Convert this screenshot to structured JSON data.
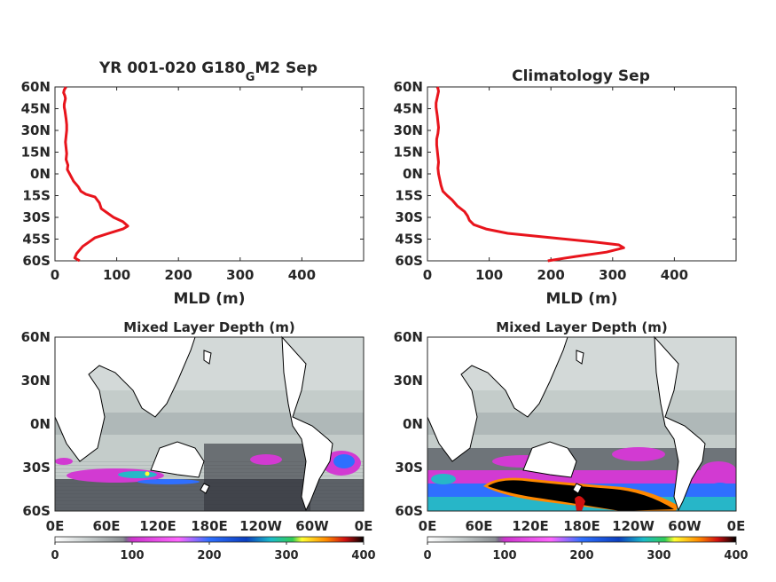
{
  "chart_data": [
    {
      "type": "line",
      "title_main": "YR 001-020 G180",
      "title_sub": "G",
      "title_tail": "M2 Sep",
      "xlabel": "MLD (m)",
      "ylabel": "",
      "xlim": [
        0,
        500
      ],
      "ylim": [
        -60,
        60
      ],
      "x_ticks": [
        "0",
        "100",
        "200",
        "300",
        "400"
      ],
      "y_ticks": [
        "60N",
        "45N",
        "30N",
        "15N",
        "0N",
        "15S",
        "30S",
        "45S",
        "60S"
      ],
      "color": "#e8141c",
      "series": [
        {
          "x": [
            40,
            32,
            35,
            45,
            55,
            65,
            80,
            95,
            110,
            118,
            110,
            95,
            85,
            75,
            72,
            65,
            50,
            42,
            38,
            30,
            25,
            20,
            21,
            18,
            19,
            18,
            17,
            18,
            19,
            19,
            18,
            17,
            16,
            15,
            15,
            16,
            17,
            16,
            14,
            15,
            18
          ],
          "y": [
            -60,
            -58,
            -55,
            -50,
            -47,
            -44,
            -42,
            -40,
            -38,
            -36,
            -33,
            -30,
            -27,
            -24,
            -20,
            -16,
            -14,
            -12,
            -9,
            -5,
            -1,
            3,
            6,
            10,
            14,
            18,
            22,
            26,
            30,
            34,
            38,
            41,
            44,
            46,
            48,
            50,
            52,
            54,
            56,
            58,
            60
          ]
        }
      ]
    },
    {
      "type": "line",
      "title": "Climatology Sep",
      "xlabel": "MLD (m)",
      "ylabel": "",
      "xlim": [
        0,
        500
      ],
      "ylim": [
        -60,
        60
      ],
      "x_ticks": [
        "0",
        "100",
        "200",
        "300",
        "400"
      ],
      "y_ticks": [
        "60N",
        "45N",
        "30N",
        "15N",
        "0N",
        "15S",
        "30S",
        "45S",
        "60S"
      ],
      "color": "#e8141c",
      "series": [
        {
          "x": [
            195,
            240,
            290,
            318,
            310,
            270,
            200,
            130,
            95,
            75,
            68,
            65,
            60,
            48,
            40,
            32,
            25,
            22,
            20,
            18,
            17,
            18,
            17,
            16,
            15,
            15,
            17,
            18,
            17,
            16,
            15,
            14,
            14,
            15,
            16,
            17,
            18,
            17,
            16
          ],
          "y": [
            -60,
            -57,
            -54,
            -51,
            -49,
            -47,
            -44,
            -41,
            -38,
            -35,
            -32,
            -29,
            -26,
            -22,
            -18,
            -15,
            -12,
            -8,
            -4,
            0,
            4,
            8,
            12,
            16,
            20,
            24,
            28,
            32,
            36,
            40,
            43,
            46,
            49,
            51,
            53,
            55,
            57,
            59,
            60
          ]
        }
      ]
    },
    {
      "type": "heatmap",
      "title": "Mixed Layer Depth (m)",
      "x_ticks": [
        "0E",
        "60E",
        "120E",
        "180E",
        "120W",
        "60W",
        "0E"
      ],
      "y_ticks": [
        "60N",
        "30N",
        "0N",
        "30S",
        "60S"
      ],
      "colorbar_ticks": [
        "0",
        "100",
        "200",
        "300",
        "400"
      ],
      "colorbar_range": [
        0,
        400
      ]
    },
    {
      "type": "heatmap",
      "title": "Mixed Layer Depth (m)",
      "x_ticks": [
        "0E",
        "60E",
        "120E",
        "180E",
        "120W",
        "60W",
        "0E"
      ],
      "y_ticks": [
        "60N",
        "30N",
        "0N",
        "30S",
        "60S"
      ],
      "colorbar_ticks": [
        "0",
        "100",
        "200",
        "300",
        "400"
      ],
      "colorbar_range": [
        0,
        400
      ]
    }
  ],
  "colorbar_colors": [
    {
      "stop": 0.0,
      "color": "#ffffff"
    },
    {
      "stop": 0.1,
      "color": "#c9cfcf"
    },
    {
      "stop": 0.22,
      "color": "#8a8f93"
    },
    {
      "stop": 0.23,
      "color": "#7a6a8a"
    },
    {
      "stop": 0.25,
      "color": "#cc33cc"
    },
    {
      "stop": 0.4,
      "color": "#ff66ff"
    },
    {
      "stop": 0.5,
      "color": "#2f6fff"
    },
    {
      "stop": 0.62,
      "color": "#0a3fbf"
    },
    {
      "stop": 0.7,
      "color": "#1bbcc9"
    },
    {
      "stop": 0.77,
      "color": "#33cc55"
    },
    {
      "stop": 0.8,
      "color": "#ffff33"
    },
    {
      "stop": 0.88,
      "color": "#ff8800"
    },
    {
      "stop": 0.94,
      "color": "#d01010"
    },
    {
      "stop": 1.0,
      "color": "#000000"
    }
  ]
}
